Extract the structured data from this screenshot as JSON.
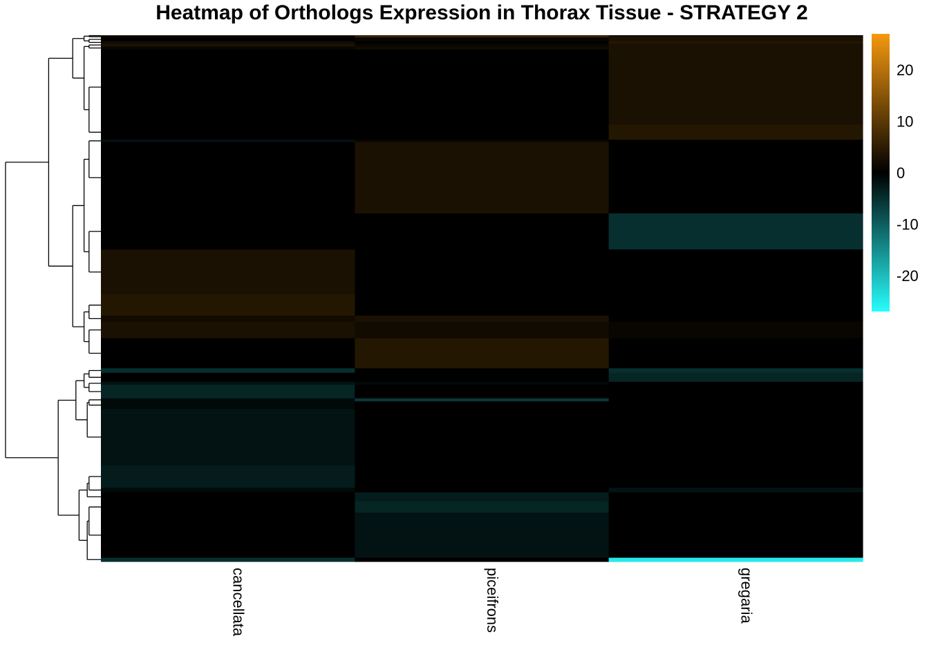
{
  "chart_data": {
    "type": "heatmap",
    "title": "Heatmap of Orthologs Expression in Thorax Tissue - STRATEGY 2",
    "xlabel": "",
    "ylabel": "",
    "columns": [
      "cancellata",
      "piceifrons",
      "gregaria"
    ],
    "color_scale": {
      "min": -27,
      "max": 27,
      "low_color": "#27fdfd",
      "mid_color": "#000000",
      "high_color": "#f5990f",
      "ticks": [
        "20",
        "10",
        "0",
        "-10",
        "-20"
      ],
      "tick_values": [
        20,
        10,
        0,
        -10,
        -20
      ]
    },
    "row_groups": [
      {
        "weight": 1,
        "values": [
          4,
          5,
          0
        ]
      },
      {
        "weight": 2,
        "values": [
          1,
          6,
          3
        ]
      },
      {
        "weight": 5,
        "values": [
          0,
          1,
          3
        ]
      },
      {
        "weight": 3,
        "values": [
          2,
          0,
          4
        ]
      },
      {
        "weight": 4,
        "values": [
          3,
          1,
          3
        ]
      },
      {
        "weight": 4,
        "values": [
          1,
          2,
          3
        ]
      },
      {
        "weight": 100,
        "values": [
          0,
          0,
          3
        ]
      },
      {
        "weight": 20,
        "values": [
          0,
          0,
          4
        ]
      },
      {
        "weight": 3,
        "values": [
          -2,
          1,
          0
        ]
      },
      {
        "weight": 95,
        "values": [
          0,
          3,
          0
        ]
      },
      {
        "weight": 48,
        "values": [
          0,
          0,
          -5
        ]
      },
      {
        "weight": 60,
        "values": [
          3,
          0,
          0
        ]
      },
      {
        "weight": 28,
        "values": [
          4,
          0,
          0
        ]
      },
      {
        "weight": 8,
        "values": [
          2,
          3,
          0
        ]
      },
      {
        "weight": 22,
        "values": [
          3,
          2,
          1
        ]
      },
      {
        "weight": 40,
        "values": [
          0,
          4,
          0
        ]
      },
      {
        "weight": 6,
        "values": [
          -5,
          0,
          -5
        ]
      },
      {
        "weight": 12,
        "values": [
          0,
          0,
          -4
        ]
      },
      {
        "weight": 4,
        "values": [
          -2,
          -1,
          0
        ]
      },
      {
        "weight": 18,
        "values": [
          -4,
          0,
          0
        ]
      },
      {
        "weight": 4,
        "values": [
          -1,
          -6,
          0
        ]
      },
      {
        "weight": 10,
        "values": [
          -1,
          0,
          0
        ]
      },
      {
        "weight": 75,
        "values": [
          -2,
          0,
          0
        ]
      },
      {
        "weight": 30,
        "values": [
          -3,
          0,
          0
        ]
      },
      {
        "weight": 6,
        "values": [
          -1,
          0,
          -2
        ]
      },
      {
        "weight": 12,
        "values": [
          0,
          -3,
          0
        ]
      },
      {
        "weight": 15,
        "values": [
          0,
          -4,
          0
        ]
      },
      {
        "weight": 60,
        "values": [
          0,
          -2,
          0
        ]
      },
      {
        "weight": 5,
        "values": [
          -5,
          0,
          -25
        ]
      }
    ],
    "legend_placement": "right",
    "dendrogram": "rows",
    "grid": false
  }
}
